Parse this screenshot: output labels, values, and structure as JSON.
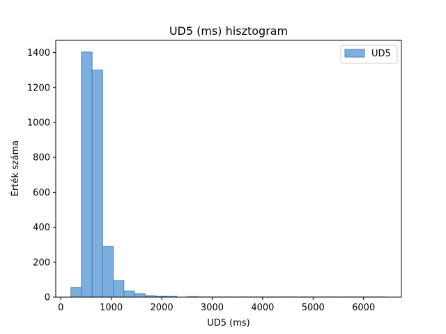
{
  "chart_data": {
    "type": "bar",
    "title": "UD5 (ms) hisztogram",
    "xlabel": "UD5 (ms)",
    "ylabel": "Érték száma",
    "xlim": [
      -100,
      6750
    ],
    "ylim": [
      0,
      1470
    ],
    "x_ticks": [
      0,
      1000,
      2000,
      3000,
      4000,
      5000,
      6000
    ],
    "y_ticks": [
      0,
      200,
      400,
      600,
      800,
      1000,
      1200,
      1400
    ],
    "grid": false,
    "legend_position": "top-right",
    "series": [
      {
        "name": "UD5",
        "color": "#5b9bd5",
        "bin_edges": [
          200,
          410,
          620,
          830,
          1040,
          1250,
          1460,
          1670,
          1880,
          2090,
          2300,
          2510,
          2720,
          2930,
          3140,
          3350,
          3560,
          3770,
          3980,
          4190,
          4400,
          4610,
          4820,
          5030,
          5240,
          5450,
          5660,
          5870,
          6080,
          6290,
          6430
        ],
        "counts": [
          55,
          1403,
          1300,
          290,
          95,
          35,
          20,
          8,
          6,
          5,
          0,
          3,
          1,
          1,
          1,
          1,
          1,
          1,
          1,
          1,
          1,
          1,
          1,
          1,
          1,
          1,
          1,
          1,
          1,
          1
        ]
      }
    ]
  }
}
